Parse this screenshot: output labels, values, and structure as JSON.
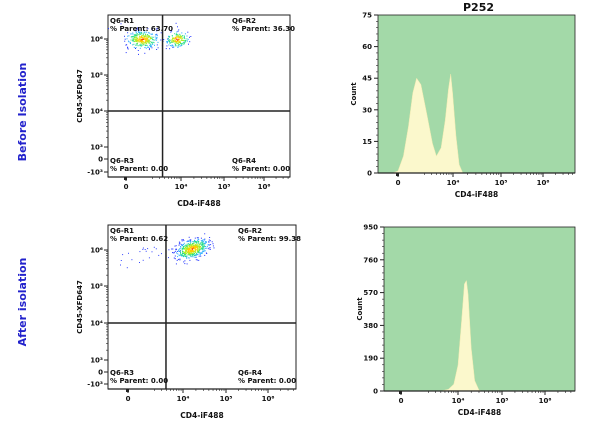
{
  "row_labels": [
    "Before Isolation",
    "After isolation"
  ],
  "row_label_color": "#2222cc",
  "chart_data": [
    {
      "type": "scatter",
      "row": "Before Isolation",
      "xlabel": "CD4-iF488",
      "ylabel": "CD45-XFD647",
      "x_ticks": [
        "0",
        "10⁴",
        "10⁵",
        "10⁶"
      ],
      "y_ticks": [
        "10⁶",
        "10⁵",
        "10⁴",
        "10³",
        "0",
        "-10³"
      ],
      "x_scale": "biexponential",
      "y_scale": "biexponential",
      "quadrant_gate": {
        "x": 3600,
        "y": 10000
      },
      "quadrants": [
        {
          "name": "Q6-R1",
          "label": "% Parent: 63.70"
        },
        {
          "name": "Q6-R2",
          "label": "% Parent: 36.30"
        },
        {
          "name": "Q6-R3",
          "label": "% Parent: 0.00"
        },
        {
          "name": "Q6-R4",
          "label": "% Parent: 0.00"
        }
      ],
      "clusters": [
        {
          "x": 1000,
          "y": 1000000,
          "weight": 0.637
        },
        {
          "x": 8000,
          "y": 1000000,
          "weight": 0.363
        }
      ]
    },
    {
      "type": "area",
      "row": "Before Isolation",
      "title": "P252",
      "xlabel": "CD4-iF488",
      "ylabel": "Count",
      "ylim": [
        0,
        75
      ],
      "y_ticks": [
        "0",
        "15",
        "30",
        "45",
        "60",
        "75"
      ],
      "x_ticks": [
        "0",
        "10⁴",
        "10⁵",
        "10⁶"
      ],
      "x_scale": "biexponential",
      "fill_color": "#fbf8cc",
      "background_color": "#a3d9a8",
      "points": [
        [
          -300,
          0
        ],
        [
          0,
          1
        ],
        [
          300,
          8
        ],
        [
          600,
          22
        ],
        [
          900,
          38
        ],
        [
          1200,
          45
        ],
        [
          1600,
          42
        ],
        [
          2300,
          28
        ],
        [
          3200,
          14
        ],
        [
          4000,
          8
        ],
        [
          5200,
          12
        ],
        [
          6500,
          25
        ],
        [
          7800,
          40
        ],
        [
          8800,
          47
        ],
        [
          9800,
          38
        ],
        [
          11500,
          18
        ],
        [
          13500,
          4
        ],
        [
          16000,
          0
        ]
      ]
    },
    {
      "type": "scatter",
      "row": "After isolation",
      "xlabel": "CD4-iF488",
      "ylabel": "CD45-XFD647",
      "x_ticks": [
        "0",
        "10⁴",
        "10⁵",
        "10⁶"
      ],
      "y_ticks": [
        "10⁶",
        "10⁵",
        "10⁴",
        "10³",
        "0",
        "-10³"
      ],
      "x_scale": "biexponential",
      "y_scale": "biexponential",
      "quadrant_gate": {
        "x": 3900,
        "y": 10000
      },
      "quadrants": [
        {
          "name": "Q6-R1",
          "label": "% Parent: 0.62"
        },
        {
          "name": "Q6-R2",
          "label": "% Parent: 99.38"
        },
        {
          "name": "Q6-R3",
          "label": "% Parent: 0.00"
        },
        {
          "name": "Q6-R4",
          "label": "% Parent: 0.00"
        }
      ],
      "clusters": [
        {
          "x": 16000,
          "y": 1100000,
          "weight": 0.9938
        },
        {
          "x": 1500,
          "y": 800000,
          "weight": 0.0062
        }
      ]
    },
    {
      "type": "area",
      "row": "After isolation",
      "title": "",
      "xlabel": "CD4-iF488",
      "ylabel": "Count",
      "ylim": [
        0,
        950
      ],
      "y_ticks": [
        "0",
        "190",
        "380",
        "570",
        "760",
        "950"
      ],
      "x_ticks": [
        "0",
        "10⁴",
        "10⁵",
        "10⁶"
      ],
      "x_scale": "biexponential",
      "fill_color": "#fbf8cc",
      "background_color": "#a3d9a8",
      "points": [
        [
          4000,
          0
        ],
        [
          6000,
          10
        ],
        [
          8000,
          40
        ],
        [
          10000,
          150
        ],
        [
          12000,
          400
        ],
        [
          14000,
          620
        ],
        [
          15500,
          640
        ],
        [
          17000,
          560
        ],
        [
          20000,
          250
        ],
        [
          24000,
          60
        ],
        [
          30000,
          5
        ],
        [
          35000,
          0
        ]
      ]
    }
  ]
}
